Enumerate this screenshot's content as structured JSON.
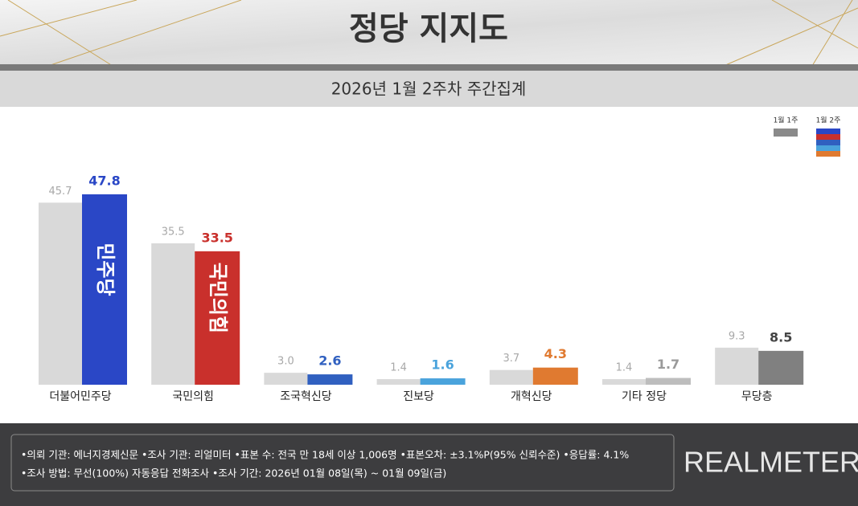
{
  "chart_data": {
    "type": "bar",
    "title": "정당 지지도",
    "subtitle": "2026년 1월 2주차 주간집계",
    "categories": [
      "더불어민주당",
      "국민의힘",
      "조국혁신당",
      "진보당",
      "개혁신당",
      "기타 정당",
      "무당층"
    ],
    "series": [
      {
        "name": "1월 1주",
        "color": "#d9d9d9",
        "values": [
          45.7,
          35.5,
          3.0,
          1.4,
          3.7,
          1.4,
          9.3
        ],
        "value_labels": [
          "45.7",
          "35.5",
          "3.0",
          "1.4",
          "3.7",
          "1.4",
          "9.3"
        ]
      },
      {
        "name": "1월 2주",
        "colors": [
          "#2a47c6",
          "#c9302c",
          "#3060c0",
          "#4aa3dc",
          "#e07a30",
          "#bdbdbd",
          "#808080"
        ],
        "values": [
          47.8,
          33.5,
          2.6,
          1.6,
          4.3,
          1.7,
          8.5
        ],
        "bar_texts": [
          "민주당",
          "국민의힘",
          null,
          null,
          null,
          null,
          null
        ]
      }
    ],
    "notes": [
      "•의뢰 기관: 에너지경제신문  •조사 기관: 리얼미터 •표본 수: 전국 만 18세 이상 1,006명 •표본오차: ±3.1%P(95% 신뢰수준) •응답률: 4.1%",
      "•조사 방법: 무선(100%) 자동응답 전화조사 •조사 기간: 2026년 01월 08일(목) ~ 01월 09일(금)"
    ],
    "source": "REALMETER"
  }
}
